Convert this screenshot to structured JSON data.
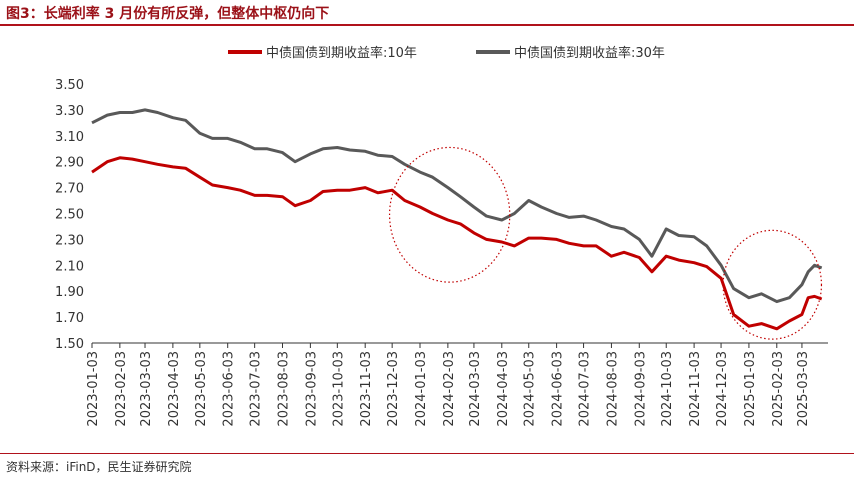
{
  "page": {
    "title": "图3：长端利率 3 月份有所反弹，但整体中枢仍向下",
    "source": "资料来源：iFinD，民生证券研究院"
  },
  "chart_data": {
    "type": "line",
    "title": "",
    "xlabel": "",
    "ylabel": "",
    "ylim": [
      1.5,
      3.5
    ],
    "yticks": [
      "3.50",
      "3.30",
      "3.10",
      "2.90",
      "2.70",
      "2.50",
      "2.30",
      "2.10",
      "1.90",
      "1.70",
      "1.50"
    ],
    "x_tick_labels": [
      "2023-01-03",
      "2023-02-03",
      "2023-03-03",
      "2023-04-03",
      "2023-05-03",
      "2023-06-03",
      "2023-07-03",
      "2023-08-03",
      "2023-09-03",
      "2023-10-03",
      "2023-11-03",
      "2023-12-03",
      "2024-01-03",
      "2024-02-03",
      "2024-03-03",
      "2024-04-03",
      "2024-05-03",
      "2024-06-03",
      "2024-07-03",
      "2024-08-03",
      "2024-09-03",
      "2024-10-03",
      "2024-11-03",
      "2024-12-03",
      "2025-01-03",
      "2025-02-03",
      "2025-03-03"
    ],
    "grid": false,
    "legend_position": "top-center",
    "series": [
      {
        "name": "中债国债到期收益率:10年",
        "color": "#c00000",
        "points": [
          [
            "2023-01-03",
            2.82
          ],
          [
            "2023-01-20",
            2.9
          ],
          [
            "2023-02-03",
            2.93
          ],
          [
            "2023-02-17",
            2.92
          ],
          [
            "2023-03-03",
            2.9
          ],
          [
            "2023-03-17",
            2.88
          ],
          [
            "2023-04-03",
            2.86
          ],
          [
            "2023-04-17",
            2.85
          ],
          [
            "2023-05-03",
            2.78
          ],
          [
            "2023-05-17",
            2.72
          ],
          [
            "2023-06-03",
            2.7
          ],
          [
            "2023-06-17",
            2.68
          ],
          [
            "2023-07-03",
            2.64
          ],
          [
            "2023-07-17",
            2.64
          ],
          [
            "2023-08-03",
            2.63
          ],
          [
            "2023-08-17",
            2.56
          ],
          [
            "2023-09-03",
            2.6
          ],
          [
            "2023-09-17",
            2.67
          ],
          [
            "2023-10-03",
            2.68
          ],
          [
            "2023-10-17",
            2.68
          ],
          [
            "2023-11-03",
            2.7
          ],
          [
            "2023-11-17",
            2.66
          ],
          [
            "2023-12-03",
            2.68
          ],
          [
            "2023-12-17",
            2.6
          ],
          [
            "2024-01-03",
            2.55
          ],
          [
            "2024-01-17",
            2.5
          ],
          [
            "2024-02-03",
            2.45
          ],
          [
            "2024-02-17",
            2.42
          ],
          [
            "2024-03-03",
            2.35
          ],
          [
            "2024-03-17",
            2.3
          ],
          [
            "2024-04-03",
            2.28
          ],
          [
            "2024-04-17",
            2.25
          ],
          [
            "2024-05-03",
            2.31
          ],
          [
            "2024-05-17",
            2.31
          ],
          [
            "2024-06-03",
            2.3
          ],
          [
            "2024-06-17",
            2.27
          ],
          [
            "2024-07-03",
            2.25
          ],
          [
            "2024-07-17",
            2.25
          ],
          [
            "2024-08-03",
            2.17
          ],
          [
            "2024-08-17",
            2.2
          ],
          [
            "2024-09-03",
            2.16
          ],
          [
            "2024-09-17",
            2.05
          ],
          [
            "2024-10-03",
            2.17
          ],
          [
            "2024-10-17",
            2.14
          ],
          [
            "2024-11-03",
            2.12
          ],
          [
            "2024-11-17",
            2.09
          ],
          [
            "2024-12-03",
            2.0
          ],
          [
            "2024-12-17",
            1.72
          ],
          [
            "2025-01-03",
            1.63
          ],
          [
            "2025-01-17",
            1.65
          ],
          [
            "2025-02-03",
            1.61
          ],
          [
            "2025-02-17",
            1.67
          ],
          [
            "2025-03-03",
            1.72
          ],
          [
            "2025-03-10",
            1.85
          ],
          [
            "2025-03-17",
            1.86
          ],
          [
            "2025-03-25",
            1.84
          ]
        ]
      },
      {
        "name": "中债国债到期收益率:30年",
        "color": "#595959",
        "points": [
          [
            "2023-01-03",
            3.2
          ],
          [
            "2023-01-20",
            3.26
          ],
          [
            "2023-02-03",
            3.28
          ],
          [
            "2023-02-17",
            3.28
          ],
          [
            "2023-03-03",
            3.3
          ],
          [
            "2023-03-17",
            3.28
          ],
          [
            "2023-04-03",
            3.24
          ],
          [
            "2023-04-17",
            3.22
          ],
          [
            "2023-05-03",
            3.12
          ],
          [
            "2023-05-17",
            3.08
          ],
          [
            "2023-06-03",
            3.08
          ],
          [
            "2023-06-17",
            3.05
          ],
          [
            "2023-07-03",
            3.0
          ],
          [
            "2023-07-17",
            3.0
          ],
          [
            "2023-08-03",
            2.97
          ],
          [
            "2023-08-17",
            2.9
          ],
          [
            "2023-09-03",
            2.96
          ],
          [
            "2023-09-17",
            3.0
          ],
          [
            "2023-10-03",
            3.01
          ],
          [
            "2023-10-17",
            2.99
          ],
          [
            "2023-11-03",
            2.98
          ],
          [
            "2023-11-17",
            2.95
          ],
          [
            "2023-12-03",
            2.94
          ],
          [
            "2023-12-17",
            2.88
          ],
          [
            "2024-01-03",
            2.82
          ],
          [
            "2024-01-17",
            2.78
          ],
          [
            "2024-02-03",
            2.7
          ],
          [
            "2024-02-17",
            2.63
          ],
          [
            "2024-03-03",
            2.55
          ],
          [
            "2024-03-17",
            2.48
          ],
          [
            "2024-04-03",
            2.45
          ],
          [
            "2024-04-17",
            2.5
          ],
          [
            "2024-05-03",
            2.6
          ],
          [
            "2024-05-17",
            2.55
          ],
          [
            "2024-06-03",
            2.5
          ],
          [
            "2024-06-17",
            2.47
          ],
          [
            "2024-07-03",
            2.48
          ],
          [
            "2024-07-17",
            2.45
          ],
          [
            "2024-08-03",
            2.4
          ],
          [
            "2024-08-17",
            2.38
          ],
          [
            "2024-09-03",
            2.3
          ],
          [
            "2024-09-17",
            2.17
          ],
          [
            "2024-10-03",
            2.38
          ],
          [
            "2024-10-17",
            2.33
          ],
          [
            "2024-11-03",
            2.32
          ],
          [
            "2024-11-17",
            2.25
          ],
          [
            "2024-12-03",
            2.1
          ],
          [
            "2024-12-17",
            1.92
          ],
          [
            "2025-01-03",
            1.85
          ],
          [
            "2025-01-17",
            1.88
          ],
          [
            "2025-02-03",
            1.82
          ],
          [
            "2025-02-17",
            1.85
          ],
          [
            "2025-03-03",
            1.95
          ],
          [
            "2025-03-10",
            2.05
          ],
          [
            "2025-03-17",
            2.1
          ],
          [
            "2025-03-25",
            2.08
          ]
        ]
      }
    ],
    "annotations": [
      {
        "type": "dotted-circle",
        "color": "#c00000",
        "center": [
          "2024-02-05",
          2.49
        ],
        "radius_months": 2.2,
        "radius_value": 0.52
      },
      {
        "type": "dotted-circle",
        "color": "#c00000",
        "center": [
          "2025-01-29",
          1.95
        ],
        "radius_months": 1.8,
        "radius_value": 0.42
      }
    ]
  }
}
